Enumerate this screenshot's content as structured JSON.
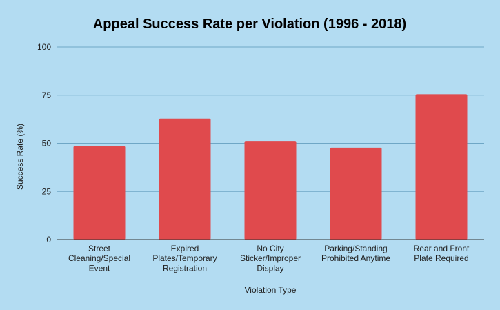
{
  "chart_data": {
    "type": "bar",
    "title": "Appeal Success Rate per Violation (1996 - 2018)",
    "xlabel": "Violation Type",
    "ylabel": "Success Rate (%)",
    "ylim": [
      0,
      100
    ],
    "yticks": [
      0,
      25,
      50,
      75,
      100
    ],
    "categories": [
      [
        "Street",
        "Cleaning/Special",
        "Event"
      ],
      [
        "Expired",
        "Plates/Temporary",
        "Registration"
      ],
      [
        "No City",
        "Sticker/Improper",
        "Display"
      ],
      [
        "Parking/Standing",
        "Prohibited Anytime"
      ],
      [
        "Rear and Front",
        "Plate Required"
      ]
    ],
    "values": [
      48.5,
      62.8,
      51.2,
      47.7,
      75.5
    ],
    "grid": true,
    "legend": "none",
    "colors": {
      "background": "#b3dcf2",
      "bar": "#e04a4d",
      "grid": "#6fa7c6"
    }
  }
}
